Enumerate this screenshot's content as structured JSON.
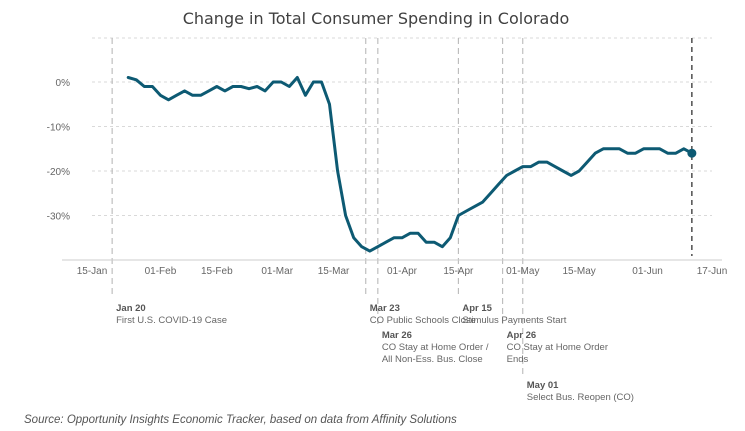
{
  "chart_data": {
    "type": "line",
    "title": "Change in Total Consumer Spending in Colorado",
    "xlabel": "",
    "ylabel": "",
    "x_ticks": [
      "15-Jan",
      "01-Feb",
      "15-Feb",
      "01-Mar",
      "15-Mar",
      "01-Apr",
      "15-Apr",
      "01-May",
      "15-May",
      "01-Jun",
      "17-Jun"
    ],
    "y_ticks": [
      "0%",
      "-10%",
      "-20%",
      "-30%"
    ],
    "ylim": [
      -42,
      5
    ],
    "grid": true,
    "line_color": "#0d5a73",
    "series": [
      {
        "x": [
          "2020-01-24",
          "2020-01-26",
          "2020-01-28",
          "2020-01-30",
          "2020-02-01",
          "2020-02-03",
          "2020-02-05",
          "2020-02-07",
          "2020-02-09",
          "2020-02-11",
          "2020-02-13",
          "2020-02-15",
          "2020-02-17",
          "2020-02-19",
          "2020-02-21",
          "2020-02-23",
          "2020-02-25",
          "2020-02-27",
          "2020-02-29",
          "2020-03-02",
          "2020-03-04",
          "2020-03-06",
          "2020-03-08",
          "2020-03-10",
          "2020-03-12",
          "2020-03-14",
          "2020-03-16",
          "2020-03-18",
          "2020-03-20",
          "2020-03-22",
          "2020-03-24",
          "2020-03-26",
          "2020-03-28",
          "2020-03-30",
          "2020-04-01",
          "2020-04-03",
          "2020-04-05",
          "2020-04-07",
          "2020-04-09",
          "2020-04-11",
          "2020-04-13",
          "2020-04-15",
          "2020-04-17",
          "2020-04-19",
          "2020-04-21",
          "2020-04-23",
          "2020-04-25",
          "2020-04-27",
          "2020-04-29",
          "2020-05-01",
          "2020-05-03",
          "2020-05-05",
          "2020-05-07",
          "2020-05-09",
          "2020-05-11",
          "2020-05-13",
          "2020-05-15",
          "2020-05-17",
          "2020-05-19",
          "2020-05-21",
          "2020-05-23",
          "2020-05-25",
          "2020-05-27",
          "2020-05-29",
          "2020-05-31",
          "2020-06-02",
          "2020-06-04",
          "2020-06-06",
          "2020-06-08",
          "2020-06-10",
          "2020-06-12"
        ],
        "values": [
          1,
          0.5,
          -1,
          -1,
          -3,
          -4,
          -3,
          -2,
          -3,
          -3,
          -2,
          -1,
          -2,
          -1,
          -1,
          -1.5,
          -1,
          -2,
          0,
          0,
          -1,
          1,
          -3,
          0,
          0,
          -5,
          -20,
          -30,
          -35,
          -37,
          -38,
          -37,
          -36,
          -35,
          -35,
          -34,
          -34,
          -36,
          -36,
          -37,
          -35,
          -30,
          -29,
          -28,
          -27,
          -25,
          -23,
          -21,
          -20,
          -19,
          -19,
          -18,
          -18,
          -19,
          -20,
          -21,
          -20,
          -18,
          -16,
          -15,
          -15,
          -15,
          -16,
          -16,
          -15,
          -15,
          -15,
          -16,
          -16,
          -15,
          -16
        ]
      }
    ],
    "end_point": {
      "x": "2020-06-12",
      "value": -16
    },
    "events": [
      {
        "date": "2020-01-20",
        "label_date": "Jan 20",
        "label_text": "First U.S. COVID-19 Case"
      },
      {
        "date": "2020-03-23",
        "label_date": "Mar 23",
        "label_text": "CO Public Schools Close"
      },
      {
        "date": "2020-03-26",
        "label_date": "Mar 26",
        "label_text": "CO Stay at Home Order /",
        "label_text2": "All Non-Ess. Bus. Close"
      },
      {
        "date": "2020-04-15",
        "label_date": "Apr 15",
        "label_text": "Stimulus Payments Start"
      },
      {
        "date": "2020-04-26",
        "label_date": "Apr 26",
        "label_text": "CO Stay at Home Order",
        "label_text2": "Ends"
      },
      {
        "date": "2020-05-01",
        "label_date": "May 01",
        "label_text": "Select Bus. Reopen (CO)"
      }
    ],
    "source": "Source: Opportunity Insights Economic Tracker, based on data from Affinity Solutions"
  }
}
